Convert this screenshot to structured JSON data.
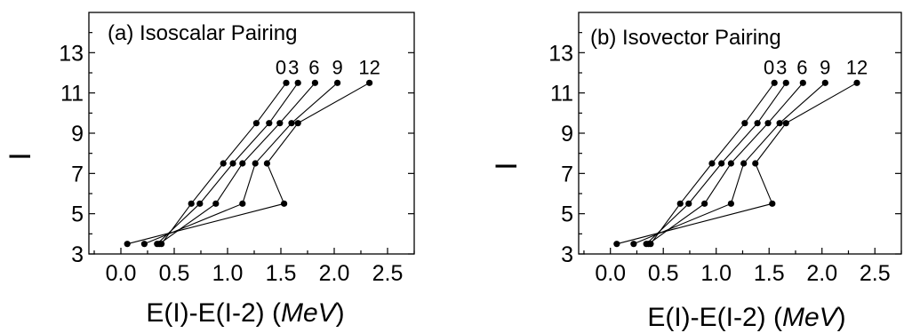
{
  "chart_data": [
    {
      "type": "line",
      "title": "(a) Isoscalar Pairing",
      "ylabel": "I",
      "xlabel": "E(I)-E(I-2) (MeV)",
      "xlabel_main": "E(I)-E(I-2) (",
      "xlabel_unit": "MeV",
      "xlabel_close": ")",
      "xlim": [
        -0.3,
        2.75
      ],
      "ylim": [
        3,
        15
      ],
      "xticks": [
        0.0,
        0.5,
        1.0,
        1.5,
        2.0,
        2.5
      ],
      "xtick_labels": [
        "0.0",
        "0.5",
        "1.0",
        "1.5",
        "2.0",
        "2.5"
      ],
      "yticks": [
        3,
        5,
        7,
        9,
        11,
        13
      ],
      "ytick_labels": [
        "3",
        "5",
        "7",
        "9",
        "11",
        "13"
      ],
      "y": [
        3.5,
        5.5,
        7.5,
        9.5,
        11.5
      ],
      "series": [
        {
          "name": "0",
          "x": [
            0.38,
            0.66,
            0.96,
            1.27,
            1.55
          ]
        },
        {
          "name": "3",
          "x": [
            0.34,
            0.74,
            1.05,
            1.39,
            1.66
          ]
        },
        {
          "name": "6",
          "x": [
            0.36,
            0.89,
            1.14,
            1.49,
            1.82
          ]
        },
        {
          "name": "9",
          "x": [
            0.22,
            1.14,
            1.26,
            1.6,
            2.03
          ]
        },
        {
          "name": "12",
          "x": [
            0.06,
            1.53,
            1.37,
            1.66,
            2.33
          ]
        }
      ]
    },
    {
      "type": "line",
      "title": "(b) Isovector Pairing",
      "ylabel": "I",
      "xlabel": "E(I)-E(I-2) (MeV)",
      "xlabel_main": "E(I)-E(I-2) (",
      "xlabel_unit": "MeV",
      "xlabel_close": ")",
      "xlim": [
        -0.3,
        2.75
      ],
      "ylim": [
        3,
        15
      ],
      "xticks": [
        0.0,
        0.5,
        1.0,
        1.5,
        2.0,
        2.5
      ],
      "xtick_labels": [
        "0.0",
        "0.5",
        "1.0",
        "1.5",
        "2.0",
        "2.5"
      ],
      "yticks": [
        3,
        5,
        7,
        9,
        11,
        13
      ],
      "ytick_labels": [
        "3",
        "5",
        "7",
        "9",
        "11",
        "13"
      ],
      "y": [
        3.5,
        5.5,
        7.5,
        9.5,
        11.5
      ],
      "series": [
        {
          "name": "0",
          "x": [
            0.38,
            0.66,
            0.96,
            1.27,
            1.55
          ]
        },
        {
          "name": "3",
          "x": [
            0.34,
            0.74,
            1.05,
            1.39,
            1.66
          ]
        },
        {
          "name": "6",
          "x": [
            0.36,
            0.89,
            1.14,
            1.49,
            1.82
          ]
        },
        {
          "name": "9",
          "x": [
            0.22,
            1.14,
            1.26,
            1.6,
            2.03
          ]
        },
        {
          "name": "12",
          "x": [
            0.06,
            1.53,
            1.37,
            1.66,
            2.33
          ]
        }
      ]
    }
  ]
}
